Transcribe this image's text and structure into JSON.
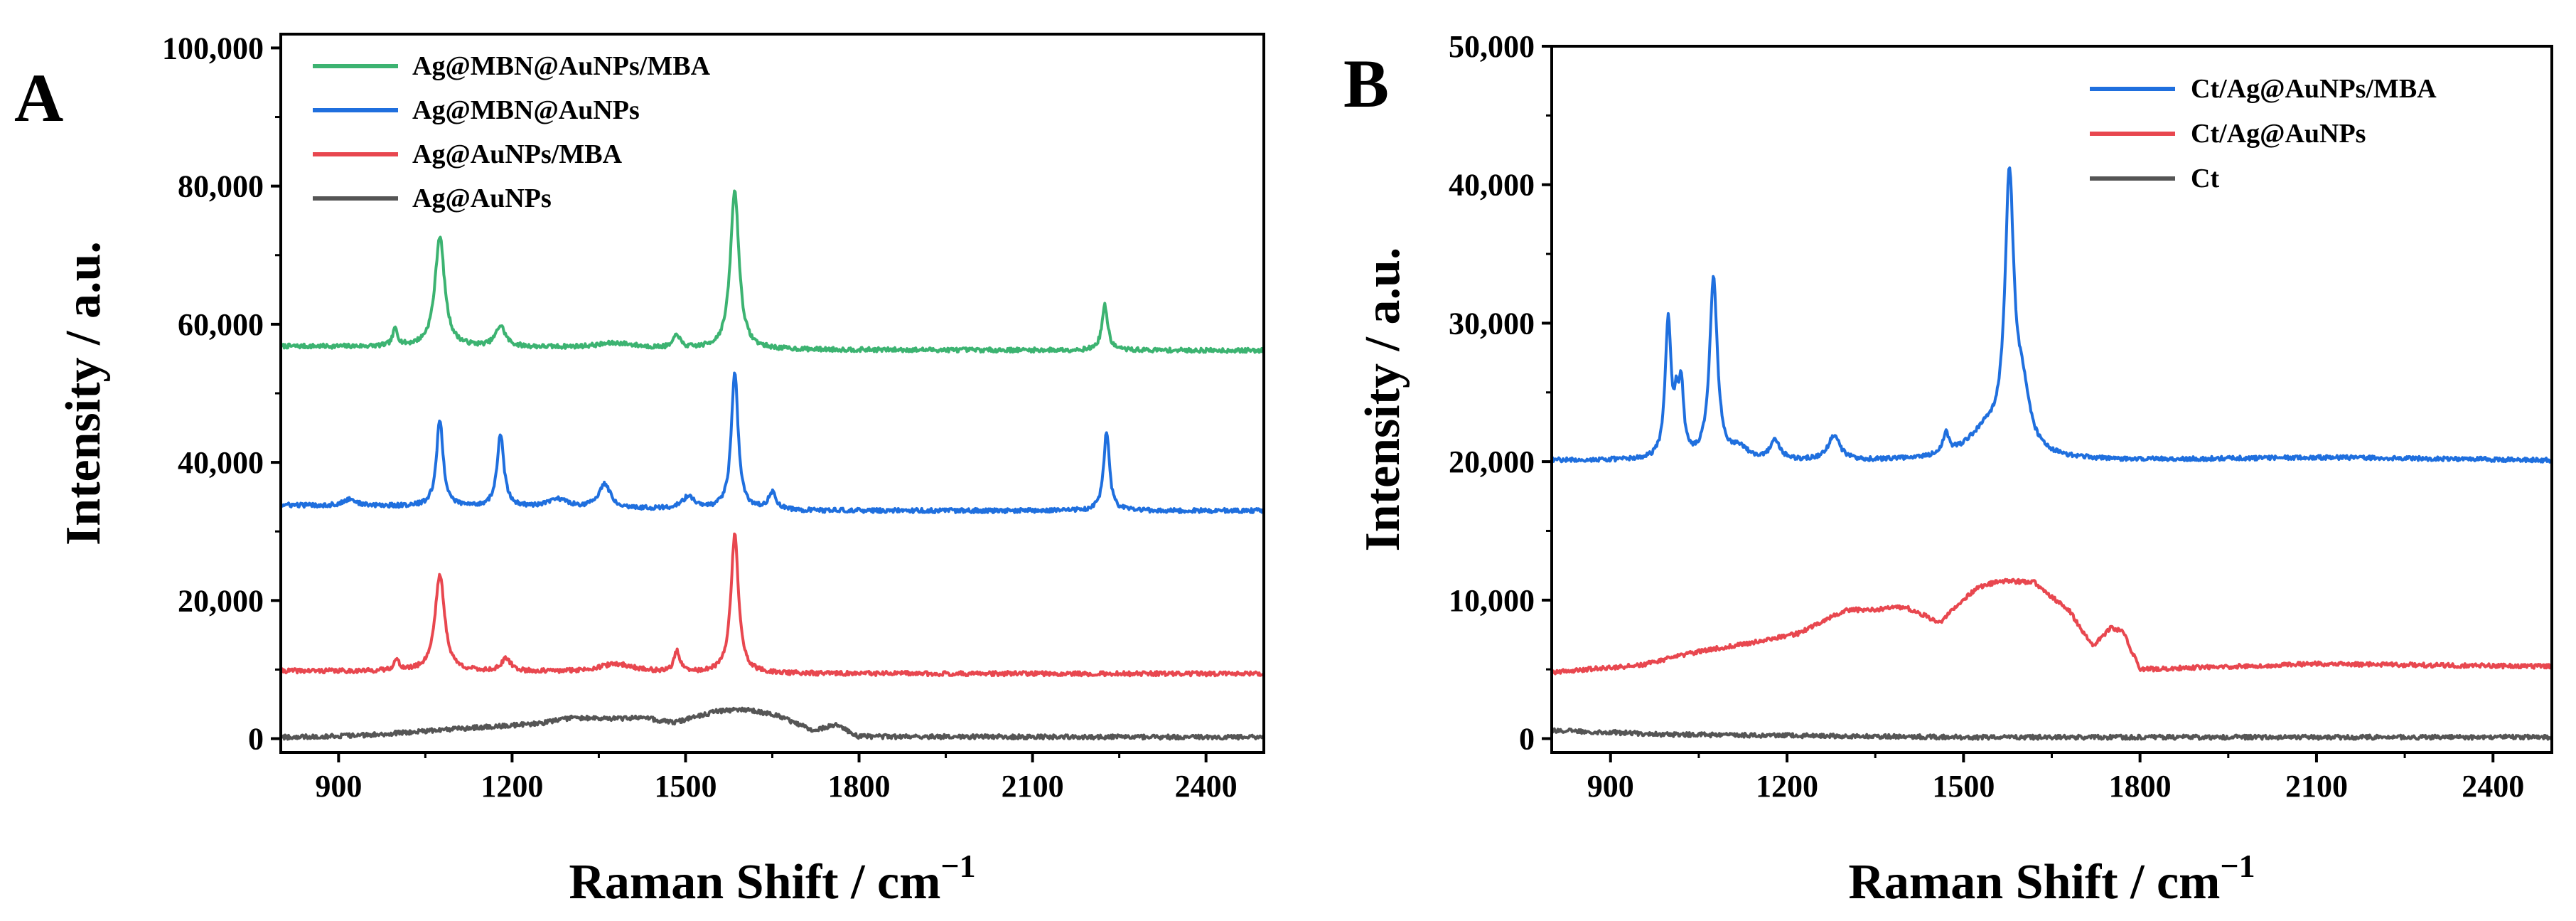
{
  "chart_data": [
    {
      "type": "line",
      "panel": "A",
      "xlabel": "Raman Shift / cm",
      "xlabel_sup": "−1",
      "ylabel": "Intensity / a.u.",
      "xlim": [
        800,
        2500
      ],
      "ylim": [
        -2000,
        102000
      ],
      "x_ticks": [
        900,
        1200,
        1500,
        1800,
        2100,
        2400
      ],
      "x_tick_labels": [
        "900",
        "1200",
        "1500",
        "1800",
        "2100",
        "2400"
      ],
      "y_ticks": [
        0,
        20000,
        40000,
        60000,
        80000,
        100000
      ],
      "y_tick_labels": [
        "0",
        "20,000",
        "40,000",
        "60,000",
        "80,000",
        "100,000"
      ],
      "legend_position": "top-left",
      "series": [
        {
          "name": "Ag@MBN@AuNPs/MBA",
          "color": "#3cb371",
          "baseline": [
            [
              800,
              56800
            ],
            [
              1300,
              56600
            ],
            [
              1600,
              56300
            ],
            [
              2500,
              56200
            ]
          ],
          "peaks": [
            [
              998,
              2500,
              5
            ],
            [
              1075,
              16000,
              10
            ],
            [
              1180,
              3000,
              10
            ],
            [
              1380,
              700,
              40
            ],
            [
              1485,
              2000,
              6
            ],
            [
              1585,
              23000,
              9
            ],
            [
              2225,
              6500,
              6
            ]
          ]
        },
        {
          "name": "Ag@MBN@AuNPs",
          "color": "#1f6fde",
          "baseline": [
            [
              800,
              33800
            ],
            [
              1300,
              33400
            ],
            [
              1700,
              33000
            ],
            [
              2500,
              33000
            ]
          ],
          "peaks": [
            [
              920,
              1000,
              12
            ],
            [
              1075,
              12500,
              7
            ],
            [
              1180,
              10500,
              7
            ],
            [
              1280,
              1200,
              20
            ],
            [
              1360,
              3500,
              12
            ],
            [
              1505,
              1800,
              12
            ],
            [
              1585,
              20000,
              7
            ],
            [
              1650,
              2500,
              8
            ],
            [
              2228,
              11500,
              6
            ]
          ]
        },
        {
          "name": "Ag@AuNPs/MBA",
          "color": "#e8474f",
          "baseline": [
            [
              800,
              9800
            ],
            [
              1300,
              9600
            ],
            [
              1600,
              9400
            ],
            [
              2500,
              9400
            ]
          ],
          "peaks": [
            [
              1000,
              1500,
              6
            ],
            [
              1075,
              14000,
              10
            ],
            [
              1190,
              1800,
              10
            ],
            [
              1380,
              1200,
              40
            ],
            [
              1485,
              3000,
              6
            ],
            [
              1585,
              20000,
              8
            ]
          ]
        },
        {
          "name": "Ag@AuNPs",
          "color": "#555555",
          "baseline": [
            [
              800,
              200
            ],
            [
              950,
              500
            ],
            [
              1100,
              1400
            ],
            [
              1250,
              2200
            ],
            [
              1300,
              3000
            ],
            [
              1380,
              2900
            ],
            [
              1430,
              3000
            ],
            [
              1480,
              2300
            ],
            [
              1550,
              3900
            ],
            [
              1600,
              4300
            ],
            [
              1660,
              3300
            ],
            [
              1720,
              1200
            ],
            [
              1760,
              2000
            ],
            [
              1800,
              300
            ],
            [
              2500,
              200
            ]
          ],
          "peaks": []
        }
      ]
    },
    {
      "type": "line",
      "panel": "B",
      "xlabel": "Raman Shift / cm",
      "xlabel_sup": "−1",
      "ylabel": "Intensity / a.u.",
      "xlim": [
        800,
        2500
      ],
      "ylim": [
        -1000,
        50000
      ],
      "x_ticks": [
        900,
        1200,
        1500,
        1800,
        2100,
        2400
      ],
      "x_tick_labels": [
        "900",
        "1200",
        "1500",
        "1800",
        "2100",
        "2400"
      ],
      "y_ticks": [
        0,
        10000,
        20000,
        30000,
        40000,
        50000
      ],
      "y_tick_labels": [
        "0",
        "10,000",
        "20,000",
        "30,000",
        "40,000",
        "50,000"
      ],
      "legend_position": "top-right",
      "series": [
        {
          "name": "Ct/Ag@AuNPs/MBA",
          "color": "#1f6fde",
          "baseline": [
            [
              800,
              20100
            ],
            [
              1300,
              20000
            ],
            [
              1800,
              20100
            ],
            [
              2100,
              20300
            ],
            [
              2500,
              20100
            ]
          ],
          "peaks": [
            [
              998,
              10000,
              6
            ],
            [
              1012,
              3000,
              4
            ],
            [
              1020,
              5000,
              5
            ],
            [
              1075,
              13000,
              8
            ],
            [
              1120,
              800,
              15
            ],
            [
              1180,
              1400,
              10
            ],
            [
              1280,
              1800,
              12
            ],
            [
              1470,
              1500,
              6
            ],
            [
              1540,
              2000,
              40
            ],
            [
              1578,
              19000,
              9
            ],
            [
              1600,
              4000,
              15
            ]
          ]
        },
        {
          "name": "Ct/Ag@AuNPs",
          "color": "#e8474f",
          "baseline": [
            [
              800,
              4800
            ],
            [
              950,
              5300
            ],
            [
              1050,
              6300
            ],
            [
              1150,
              7000
            ],
            [
              1220,
              7600
            ],
            [
              1300,
              9300
            ],
            [
              1350,
              9300
            ],
            [
              1400,
              9500
            ],
            [
              1460,
              8400
            ],
            [
              1520,
              10800
            ],
            [
              1560,
              11400
            ],
            [
              1620,
              11300
            ],
            [
              1680,
              9200
            ],
            [
              1720,
              6700
            ],
            [
              1750,
              8000
            ],
            [
              1770,
              7800
            ],
            [
              1800,
              5000
            ],
            [
              2100,
              5400
            ],
            [
              2500,
              5200
            ]
          ],
          "peaks": []
        },
        {
          "name": "Ct",
          "color": "#555555",
          "baseline": [
            [
              800,
              600
            ],
            [
              1000,
              300
            ],
            [
              1500,
              100
            ],
            [
              2500,
              100
            ]
          ],
          "peaks": []
        }
      ]
    }
  ]
}
